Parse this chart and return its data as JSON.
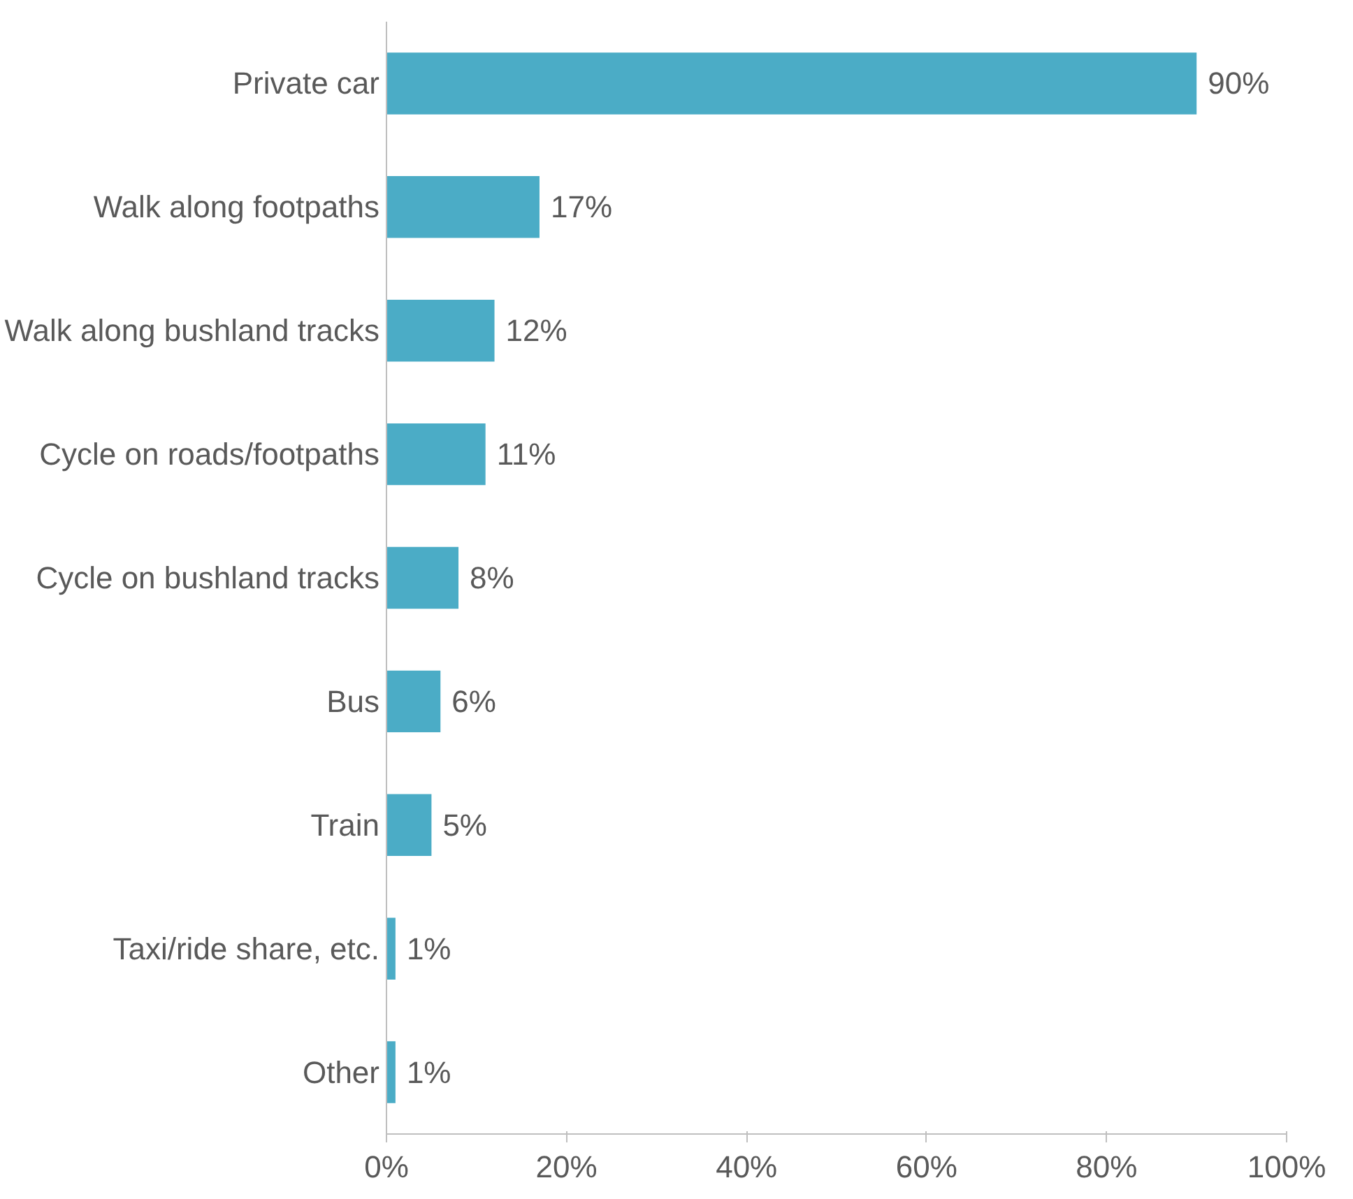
{
  "chart_data": {
    "type": "bar",
    "orientation": "horizontal",
    "categories": [
      "Private car",
      "Walk along footpaths",
      "Walk along bushland tracks",
      "Cycle on roads/footpaths",
      "Cycle on bushland tracks",
      "Bus",
      "Train",
      "Taxi/ride share, etc.",
      "Other"
    ],
    "values": [
      90,
      17,
      12,
      11,
      8,
      6,
      5,
      1,
      1
    ],
    "value_labels": [
      "90%",
      "17%",
      "12%",
      "11%",
      "8%",
      "6%",
      "5%",
      "1%",
      "1%"
    ],
    "color": "#4bacc6",
    "xlim": [
      0,
      100
    ],
    "xticks": [
      {
        "value": 0,
        "label": "0%"
      },
      {
        "value": 20,
        "label": "20%"
      },
      {
        "value": 40,
        "label": "40%"
      },
      {
        "value": 60,
        "label": "60%"
      },
      {
        "value": 80,
        "label": "80%"
      },
      {
        "value": 100,
        "label": "100%"
      }
    ],
    "grid": false
  }
}
